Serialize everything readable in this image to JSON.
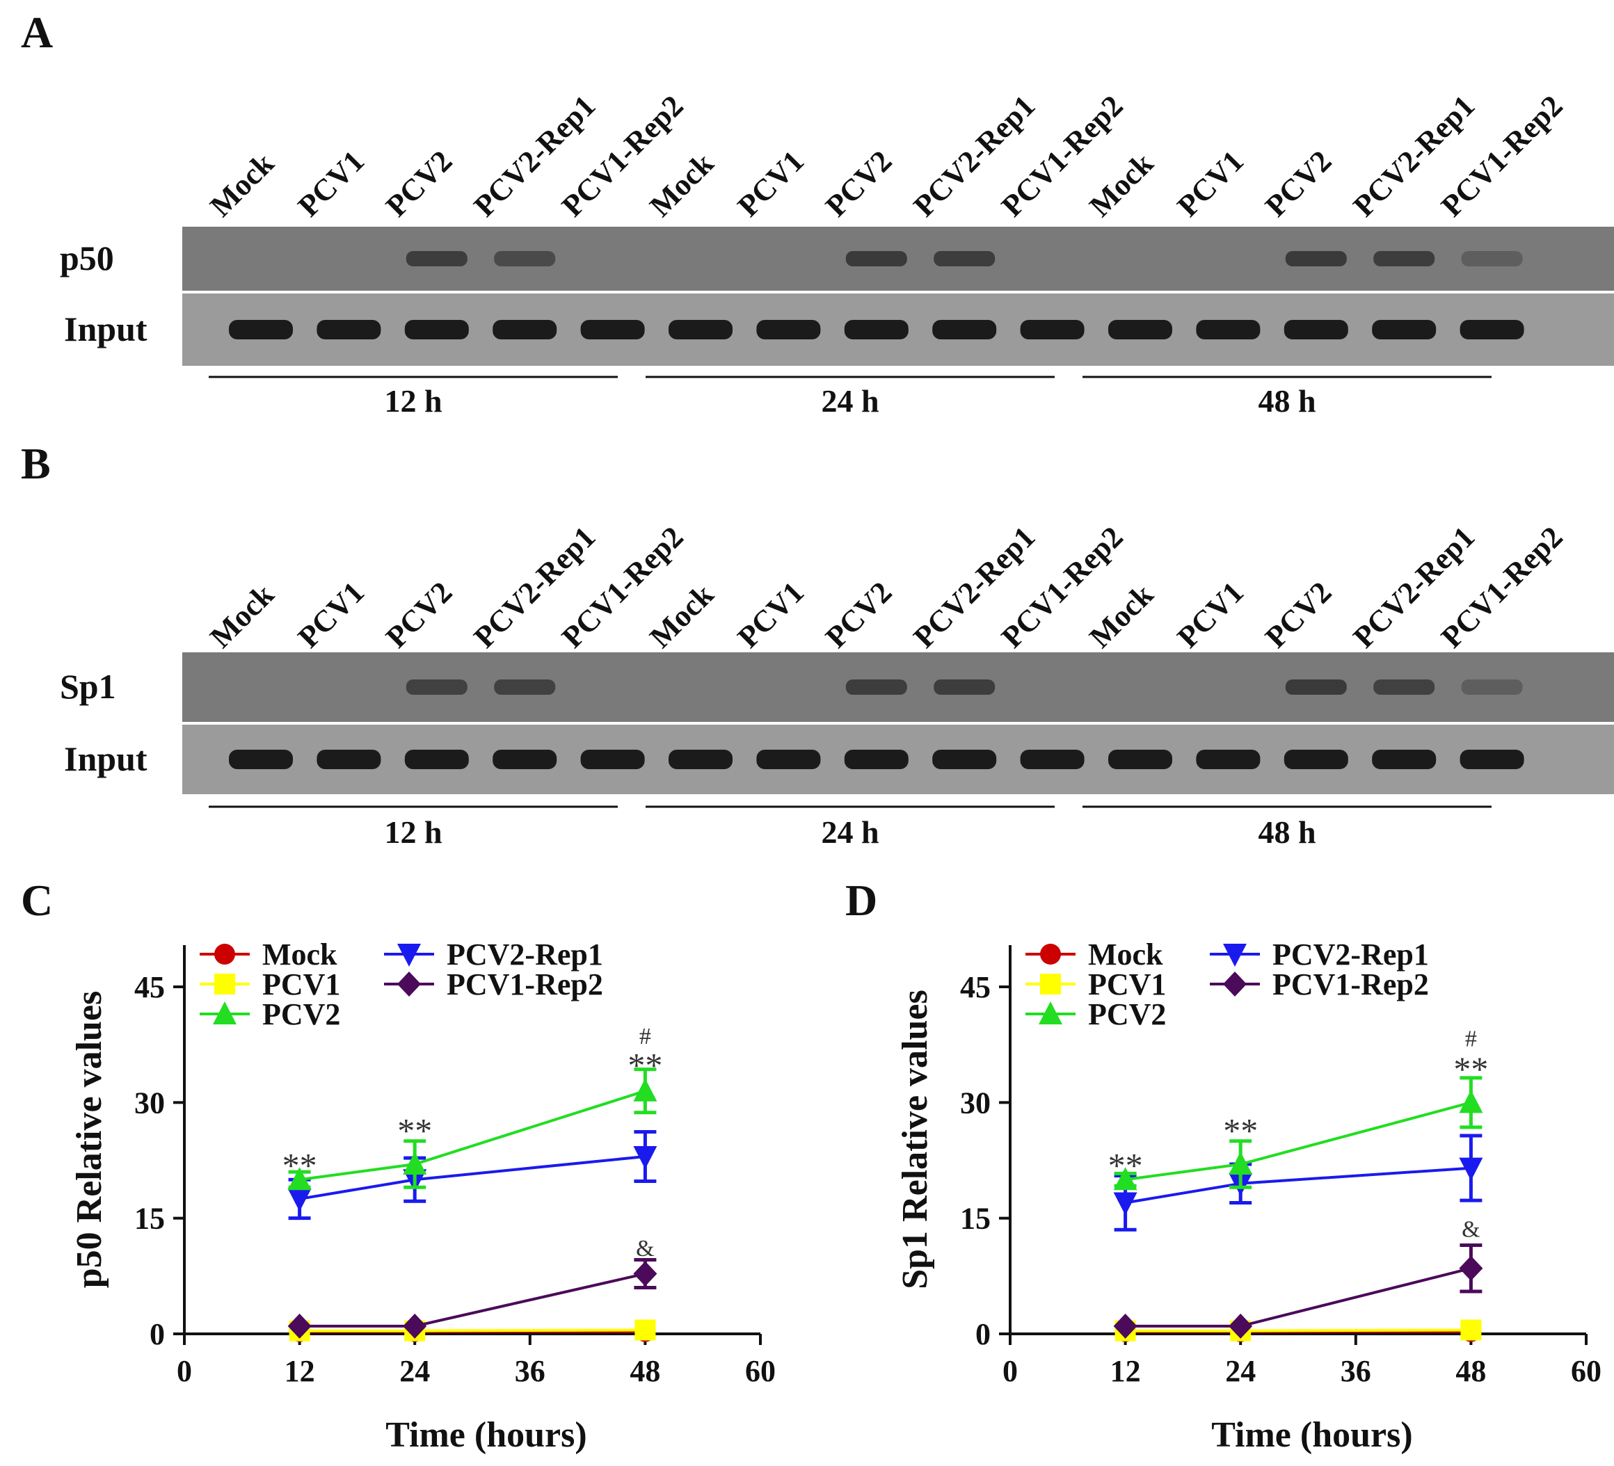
{
  "panels": {
    "A": {
      "letter": "A",
      "lane_labels": [
        "Mock",
        "PCV1",
        "PCV2",
        "PCV2-Rep1",
        "PCV1-Rep2",
        "Mock",
        "PCV1",
        "PCV2",
        "PCV2-Rep1",
        "PCV1-Rep2",
        "Mock",
        "PCV1",
        "PCV2",
        "PCV2-Rep1",
        "PCV1-Rep2"
      ],
      "top_row_label": "p50",
      "bottom_row_label": "Input",
      "top_band_intensity": [
        0,
        0,
        0.75,
        0.6,
        0,
        0,
        0,
        0.8,
        0.75,
        0,
        0,
        0,
        0.8,
        0.75,
        0.35
      ],
      "time_groups": [
        "12 h",
        "24 h",
        "48 h"
      ]
    },
    "B": {
      "letter": "B",
      "lane_labels": [
        "Mock",
        "PCV1",
        "PCV2",
        "PCV2-Rep1",
        "PCV1-Rep2",
        "Mock",
        "PCV1",
        "PCV2",
        "PCV2-Rep1",
        "PCV1-Rep2",
        "Mock",
        "PCV1",
        "PCV2",
        "PCV2-Rep1",
        "PCV1-Rep2"
      ],
      "top_row_label": "Sp1",
      "bottom_row_label": "Input",
      "top_band_intensity": [
        0,
        0,
        0.7,
        0.7,
        0,
        0,
        0,
        0.75,
        0.75,
        0,
        0,
        0,
        0.8,
        0.7,
        0.35
      ],
      "time_groups": [
        "12 h",
        "24 h",
        "48 h"
      ]
    }
  },
  "chart_data": [
    {
      "panel": "C",
      "type": "line",
      "ylabel": "p50 Relative values",
      "xlabel": "Time (hours)",
      "xlim": [
        0,
        60
      ],
      "ylim": [
        0,
        45
      ],
      "xticks": [
        0,
        12,
        24,
        36,
        48,
        60
      ],
      "yticks": [
        0,
        15,
        30,
        45
      ],
      "x": [
        12,
        24,
        48
      ],
      "series": [
        {
          "name": "Mock",
          "color": "#cc0000",
          "marker": "circle",
          "values": [
            0.3,
            0.3,
            0.3
          ],
          "errors": [
            0,
            0,
            0
          ]
        },
        {
          "name": "PCV1",
          "color": "#ffff00",
          "marker": "square",
          "values": [
            0.4,
            0.4,
            0.5
          ],
          "errors": [
            0,
            0,
            0
          ]
        },
        {
          "name": "PCV2",
          "color": "#22dd22",
          "marker": "triangle-up",
          "values": [
            20,
            22,
            31.5
          ],
          "errors": [
            1,
            3,
            2.8
          ]
        },
        {
          "name": "PCV2-Rep1",
          "color": "#1a1aee",
          "marker": "triangle-down",
          "values": [
            17.5,
            20,
            23
          ],
          "errors": [
            2.5,
            2.8,
            3.2
          ]
        },
        {
          "name": "PCV1-Rep2",
          "color": "#4b0a5a",
          "marker": "diamond",
          "values": [
            1,
            1,
            7.8
          ],
          "errors": [
            0,
            0,
            1.8
          ]
        }
      ],
      "annotations": [
        {
          "text": "**",
          "x": 12,
          "y": 22.5
        },
        {
          "text": "**",
          "x": 24,
          "y": 27
        },
        {
          "text": "**",
          "x": 48,
          "y": 35.5
        },
        {
          "text": "#",
          "x": 48,
          "y": 38.5
        },
        {
          "text": "&",
          "x": 48,
          "y": 11
        }
      ]
    },
    {
      "panel": "D",
      "type": "line",
      "ylabel": "Sp1 Relative values",
      "xlabel": "Time (hours)",
      "xlim": [
        0,
        60
      ],
      "ylim": [
        0,
        45
      ],
      "xticks": [
        0,
        12,
        24,
        36,
        48,
        60
      ],
      "yticks": [
        0,
        15,
        30,
        45
      ],
      "x": [
        12,
        24,
        48
      ],
      "series": [
        {
          "name": "Mock",
          "color": "#cc0000",
          "marker": "circle",
          "values": [
            0.3,
            0.3,
            0.3
          ],
          "errors": [
            0,
            0,
            0
          ]
        },
        {
          "name": "PCV1",
          "color": "#ffff00",
          "marker": "square",
          "values": [
            0.4,
            0.4,
            0.5
          ],
          "errors": [
            0,
            0,
            0
          ]
        },
        {
          "name": "PCV2",
          "color": "#22dd22",
          "marker": "triangle-up",
          "values": [
            20,
            22,
            30
          ],
          "errors": [
            0.8,
            3,
            3.2
          ]
        },
        {
          "name": "PCV2-Rep1",
          "color": "#1a1aee",
          "marker": "triangle-down",
          "values": [
            17,
            19.5,
            21.5
          ],
          "errors": [
            3.5,
            2.5,
            4.2
          ]
        },
        {
          "name": "PCV1-Rep2",
          "color": "#4b0a5a",
          "marker": "diamond",
          "values": [
            1,
            1,
            8.5
          ],
          "errors": [
            0,
            0,
            3
          ]
        }
      ],
      "annotations": [
        {
          "text": "**",
          "x": 12,
          "y": 22.5
        },
        {
          "text": "**",
          "x": 24,
          "y": 27
        },
        {
          "text": "**",
          "x": 48,
          "y": 35
        },
        {
          "text": "#",
          "x": 48,
          "y": 38.2
        },
        {
          "text": "&",
          "x": 48,
          "y": 13.5
        }
      ]
    }
  ]
}
